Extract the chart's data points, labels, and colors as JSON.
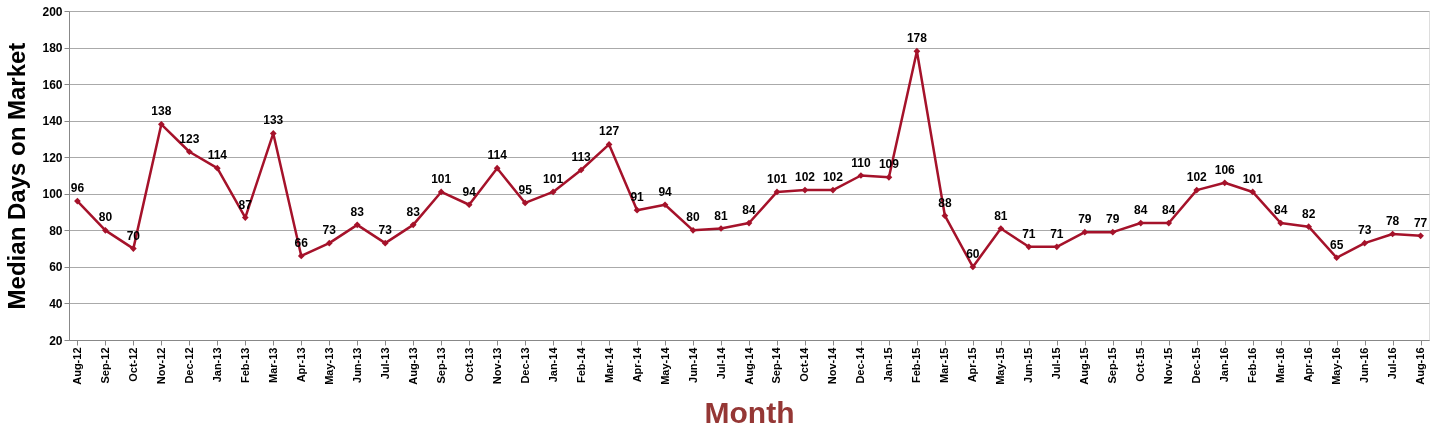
{
  "chart_data": {
    "type": "line",
    "xlabel": "Month",
    "ylabel": "Median Days on Market",
    "categories": [
      "Aug-12",
      "Sep-12",
      "Oct-12",
      "Nov-12",
      "Dec-12",
      "Jan-13",
      "Feb-13",
      "Mar-13",
      "Apr-13",
      "May-13",
      "Jun-13",
      "Jul-13",
      "Aug-13",
      "Sep-13",
      "Oct-13",
      "Nov-13",
      "Dec-13",
      "Jan-14",
      "Feb-14",
      "Mar-14",
      "Apr-14",
      "May-14",
      "Jun-14",
      "Jul-14",
      "Aug-14",
      "Sep-14",
      "Oct-14",
      "Nov-14",
      "Dec-14",
      "Jan-15",
      "Feb-15",
      "Mar-15",
      "Apr-15",
      "May-15",
      "Jun-15",
      "Jul-15",
      "Aug-15",
      "Sep-15",
      "Oct-15",
      "Nov-15",
      "Dec-15",
      "Jan-16",
      "Feb-16",
      "Mar-16",
      "Apr-16",
      "May-16",
      "Jun-16",
      "Jul-16",
      "Aug-16"
    ],
    "series": [
      {
        "color": "#a5122a",
        "values": [
          96,
          80,
          70,
          138,
          123,
          114,
          87,
          133,
          66,
          73,
          83,
          73,
          83,
          101,
          94,
          114,
          95,
          101,
          113,
          127,
          91,
          94,
          80,
          81,
          84,
          101,
          102,
          102,
          110,
          109,
          178,
          88,
          60,
          81,
          71,
          71,
          79,
          79,
          84,
          84,
          102,
          106,
          101,
          84,
          82,
          65,
          73,
          78,
          77
        ]
      }
    ],
    "ylim": [
      20,
      200
    ],
    "yticks": [
      20,
      40,
      60,
      80,
      100,
      120,
      140,
      160,
      180,
      200
    ],
    "grid": "y",
    "marker": "diamond",
    "line_style": "solid",
    "data_labels": true,
    "legend": false
  }
}
